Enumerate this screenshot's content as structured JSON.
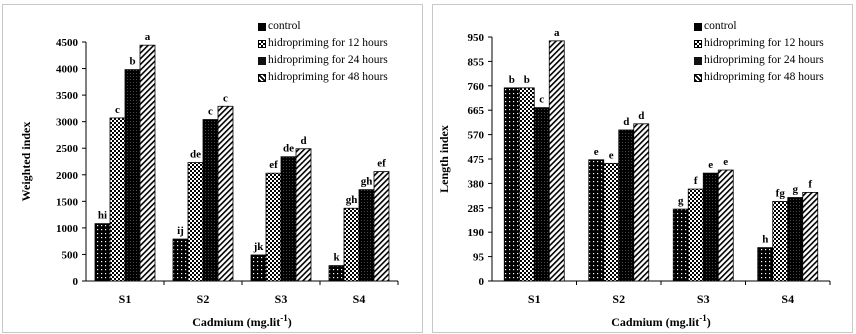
{
  "chart_data": [
    {
      "type": "bar",
      "xlabel": "Cadmium (mg.lit",
      "xlabel_sup": "-1",
      "xlabel_tail": ")",
      "ylabel": "Weighted index",
      "categories": [
        "S1",
        "S2",
        "S3",
        "S4"
      ],
      "ylim": [
        0,
        4500
      ],
      "yticks": [
        0,
        500,
        1000,
        1500,
        2000,
        2500,
        3000,
        3500,
        4000,
        4500
      ],
      "legend_position": "top-right",
      "grid": false,
      "series": [
        {
          "name": "control",
          "pattern": "dots",
          "values": [
            1080,
            790,
            490,
            290
          ],
          "letters": [
            "hi",
            "ij",
            "jk",
            "k"
          ]
        },
        {
          "name": "hidropriming for 12 hours",
          "pattern": "checker",
          "values": [
            3070,
            2230,
            2030,
            1370
          ],
          "letters": [
            "c",
            "de",
            "ef",
            "gh"
          ]
        },
        {
          "name": "hidropriming for 24 hours",
          "pattern": "dense",
          "values": [
            3980,
            3040,
            2340,
            1720
          ],
          "letters": [
            "b",
            "c",
            "de",
            "gh"
          ]
        },
        {
          "name": "hidropriming for 48 hours",
          "pattern": "diagonal",
          "values": [
            4440,
            3290,
            2490,
            2060
          ],
          "letters": [
            "a",
            "c",
            "d",
            "ef"
          ]
        }
      ]
    },
    {
      "type": "bar",
      "xlabel": "Cadmium (mg.lit",
      "xlabel_sup": "-1",
      "xlabel_tail": ")",
      "ylabel": "Length index",
      "categories": [
        "S1",
        "S2",
        "S3",
        "S4"
      ],
      "ylim": [
        0,
        950
      ],
      "yticks": [
        0,
        95,
        190,
        285,
        380,
        475,
        570,
        665,
        760,
        855,
        950
      ],
      "legend_position": "top-right",
      "grid": false,
      "series": [
        {
          "name": "control",
          "pattern": "dots",
          "values": [
            752,
            472,
            280,
            130
          ],
          "letters": [
            "b",
            "e",
            "g",
            "h"
          ]
        },
        {
          "name": "hidropriming for 12 hours",
          "pattern": "checker",
          "values": [
            752,
            458,
            358,
            310
          ],
          "letters": [
            "b",
            "e",
            "f",
            "fg"
          ]
        },
        {
          "name": "hidropriming for 24 hours",
          "pattern": "dense",
          "values": [
            675,
            588,
            420,
            325
          ],
          "letters": [
            "c",
            "d",
            "e",
            "g"
          ]
        },
        {
          "name": "hidropriming for 48 hours",
          "pattern": "diagonal",
          "values": [
            935,
            612,
            432,
            345
          ],
          "letters": [
            "a",
            "d",
            "e",
            "f"
          ]
        }
      ]
    }
  ],
  "colors": {
    "bar": "#000000",
    "pattern_bg": "#ffffff",
    "frame": "#c8c8c8"
  }
}
